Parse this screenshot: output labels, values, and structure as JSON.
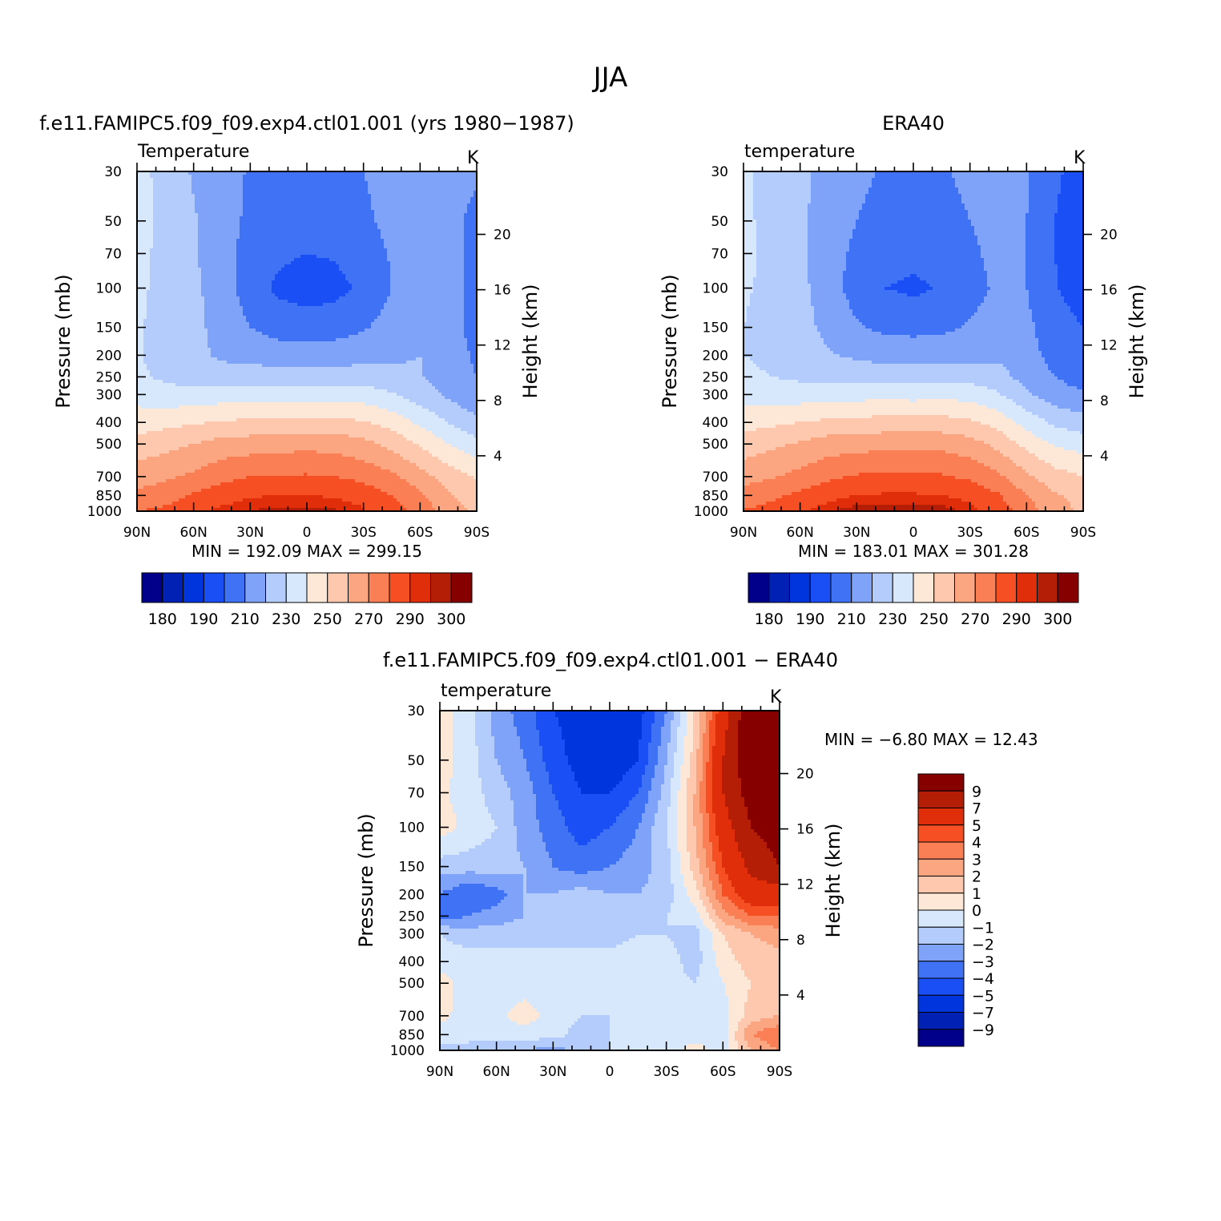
{
  "figure": {
    "title": "JJA"
  },
  "chart_data": [
    {
      "type": "heatmap",
      "title": "f.e11.FAMIPC5.f09_f09.exp4.ctl01.001 (yrs 1980-1987)",
      "subtitle": "Temperature",
      "units": "K",
      "ylabel": "Pressure (mb)",
      "ylabel_right": "Height (km)",
      "x_ticks": [
        "90N",
        "60N",
        "30N",
        "0",
        "30S",
        "60S",
        "90S"
      ],
      "y_ticks": [
        "30",
        "50",
        "70",
        "100",
        "150",
        "200",
        "250",
        "300",
        "400",
        "500",
        "700",
        "850",
        "1000"
      ],
      "height_ticks": [
        "4",
        "8",
        "12",
        "16",
        "20"
      ],
      "stats": {
        "min_label": "MIN =",
        "min": "192.09",
        "max_label": "MAX =",
        "max": "299.15"
      },
      "colorbar": {
        "orientation": "horizontal",
        "labels": [
          "180",
          "190",
          "210",
          "230",
          "250",
          "270",
          "290",
          "300"
        ],
        "colors": [
          "#00008a",
          "#0021b4",
          "#0034dc",
          "#1a4ff5",
          "#3f72f5",
          "#7ea3f8",
          "#b3ccfb",
          "#d8e8fc",
          "#fde8d8",
          "#fdc8ae",
          "#fca581",
          "#fb7f55",
          "#f64f24",
          "#e02e0b",
          "#b41e06",
          "#870000"
        ]
      },
      "grid": {
        "lats": [
          90,
          75,
          60,
          45,
          30,
          15,
          0,
          -15,
          -30,
          -45,
          -60,
          -75,
          -90
        ],
        "levels": [
          30,
          50,
          70,
          100,
          150,
          200,
          250,
          300,
          400,
          500,
          700,
          850,
          1000
        ],
        "values": [
          [
            234,
            226,
            219,
            214,
            209,
            207,
            207,
            208,
            210,
            214,
            216,
            213,
            211
          ],
          [
            234,
            227,
            221,
            214,
            208,
            205,
            204,
            205,
            208,
            213,
            216,
            212,
            208
          ],
          [
            233,
            227,
            221,
            214,
            206,
            202,
            200,
            201,
            205,
            211,
            216,
            212,
            208
          ],
          [
            232,
            227,
            222,
            215,
            205,
            198,
            195,
            197,
            202,
            210,
            216,
            212,
            208
          ],
          [
            231,
            227,
            223,
            216,
            210,
            206,
            205,
            206,
            209,
            214,
            218,
            212,
            208
          ],
          [
            231,
            226,
            223,
            218,
            216,
            215,
            214,
            215,
            216,
            218,
            220,
            213,
            209
          ],
          [
            232,
            228,
            226,
            225,
            225,
            225,
            225,
            225,
            225,
            223,
            221,
            214,
            210
          ],
          [
            236,
            234,
            233,
            235,
            235,
            236,
            235,
            236,
            235,
            231,
            225,
            218,
            212
          ],
          [
            245,
            247,
            249,
            251,
            252,
            253,
            253,
            253,
            251,
            246,
            238,
            230,
            222
          ],
          [
            254,
            257,
            260,
            264,
            265,
            266,
            267,
            266,
            263,
            257,
            249,
            240,
            233
          ],
          [
            265,
            268,
            272,
            277,
            280,
            281,
            281,
            280,
            277,
            272,
            264,
            255,
            249
          ],
          [
            273,
            276,
            281,
            286,
            289,
            290,
            290,
            289,
            286,
            280,
            272,
            261,
            255
          ],
          [
            280,
            282,
            288,
            292,
            295,
            297,
            297,
            296,
            291,
            284,
            277,
            265,
            258
          ]
        ]
      }
    },
    {
      "type": "heatmap",
      "title": "ERA40",
      "subtitle": "temperature",
      "units": "K",
      "ylabel": "Pressure (mb)",
      "ylabel_right": "Height (km)",
      "x_ticks": [
        "90N",
        "60N",
        "30N",
        "0",
        "30S",
        "60S",
        "90S"
      ],
      "y_ticks": [
        "30",
        "50",
        "70",
        "100",
        "150",
        "200",
        "250",
        "300",
        "400",
        "500",
        "700",
        "850",
        "1000"
      ],
      "height_ticks": [
        "4",
        "8",
        "12",
        "16",
        "20"
      ],
      "stats": {
        "min_label": "MIN =",
        "min": "183.01",
        "max_label": "MAX =",
        "max": "301.28"
      },
      "colorbar": {
        "orientation": "horizontal",
        "labels": [
          "180",
          "190",
          "210",
          "230",
          "250",
          "270",
          "290",
          "300"
        ],
        "colors": [
          "#00008a",
          "#0021b4",
          "#0034dc",
          "#1a4ff5",
          "#3f72f5",
          "#7ea3f8",
          "#b3ccfb",
          "#d8e8fc",
          "#fde8d8",
          "#fdc8ae",
          "#fca581",
          "#fb7f55",
          "#f64f24",
          "#e02e0b",
          "#b41e06",
          "#870000"
        ]
      },
      "grid": {
        "lats": [
          90,
          75,
          60,
          45,
          30,
          15,
          0,
          -15,
          -30,
          -45,
          -60,
          -75,
          -90
        ],
        "levels": [
          30,
          50,
          70,
          100,
          150,
          200,
          250,
          300,
          400,
          500,
          700,
          850,
          1000
        ],
        "values": [
          [
            232,
            226,
            222,
            217,
            212,
            209,
            208,
            209,
            212,
            216,
            211,
            202,
            195
          ],
          [
            232,
            227,
            222,
            215,
            210,
            207,
            206,
            207,
            210,
            214,
            210,
            200,
            193
          ],
          [
            232,
            228,
            222,
            214,
            208,
            205,
            203,
            205,
            208,
            213,
            210,
            200,
            192
          ],
          [
            231,
            228,
            223,
            214,
            206,
            200,
            198,
            201,
            206,
            212,
            210,
            201,
            194
          ],
          [
            230,
            227,
            224,
            217,
            211,
            208,
            207,
            208,
            211,
            215,
            212,
            205,
            200
          ],
          [
            230,
            228,
            225,
            221,
            218,
            216,
            216,
            216,
            217,
            218,
            213,
            207,
            203
          ],
          [
            232,
            230,
            228,
            227,
            227,
            226,
            226,
            226,
            226,
            224,
            216,
            210,
            206
          ],
          [
            237,
            236,
            235,
            236,
            236,
            237,
            236,
            237,
            236,
            231,
            222,
            214,
            211
          ],
          [
            246,
            248,
            250,
            252,
            253,
            254,
            254,
            254,
            252,
            246,
            236,
            228,
            224
          ],
          [
            255,
            258,
            261,
            265,
            266,
            267,
            268,
            267,
            264,
            257,
            247,
            239,
            236
          ],
          [
            266,
            269,
            273,
            278,
            281,
            282,
            282,
            281,
            278,
            272,
            262,
            254,
            250
          ],
          [
            274,
            278,
            282,
            287,
            290,
            291,
            291,
            290,
            287,
            281,
            270,
            261,
            257
          ],
          [
            281,
            283,
            289,
            294,
            298,
            299,
            299,
            298,
            293,
            285,
            275,
            264,
            258
          ]
        ]
      }
    },
    {
      "type": "heatmap",
      "title": "f.e11.FAMIPC5.f09_f09.exp4.ctl01.001 - ERA40",
      "subtitle": "temperature",
      "units": "K",
      "ylabel": "Pressure (mb)",
      "ylabel_right": "Height (km)",
      "x_ticks": [
        "90N",
        "60N",
        "30N",
        "0",
        "30S",
        "60S",
        "90S"
      ],
      "y_ticks": [
        "30",
        "50",
        "70",
        "100",
        "150",
        "200",
        "250",
        "300",
        "400",
        "500",
        "700",
        "850",
        "1000"
      ],
      "height_ticks": [
        "4",
        "8",
        "12",
        "16",
        "20"
      ],
      "stats": {
        "min_label": "MIN =",
        "min": "-6.80",
        "max_label": "MAX =",
        "max": "12.43"
      },
      "colorbar": {
        "orientation": "vertical",
        "labels": [
          "9",
          "7",
          "5",
          "4",
          "3",
          "2",
          "1",
          "0",
          "-1",
          "-2",
          "-3",
          "-4",
          "-5",
          "-7",
          "-9"
        ],
        "colors": [
          "#870000",
          "#b41e06",
          "#e02e0b",
          "#f64f24",
          "#fb7f55",
          "#fca581",
          "#fdc8ae",
          "#fde8d8",
          "#d8e8fc",
          "#b3ccfb",
          "#7ea3f8",
          "#3f72f5",
          "#1a4ff5",
          "#0034dc",
          "#0021b4",
          "#00008a"
        ]
      },
      "grid": {
        "lats": [
          90,
          75,
          60,
          45,
          30,
          15,
          0,
          -15,
          -30,
          -45,
          -60,
          -75,
          -90
        ],
        "levels": [
          30,
          50,
          70,
          100,
          150,
          200,
          250,
          300,
          400,
          500,
          700,
          850,
          1000
        ],
        "values": [
          [
            0.5,
            -0.5,
            -2.5,
            -3.5,
            -5.0,
            -5.5,
            -6.0,
            -5.5,
            -3.0,
            1.0,
            6.0,
            11.0,
            12.0
          ],
          [
            0.5,
            -0.5,
            -2.0,
            -3.0,
            -4.5,
            -5.5,
            -6.0,
            -5.0,
            -2.0,
            1.5,
            7.0,
            11.0,
            12.0
          ],
          [
            0.2,
            -0.5,
            -1.5,
            -2.5,
            -4.0,
            -5.0,
            -5.0,
            -4.0,
            -1.5,
            2.0,
            7.0,
            10.0,
            11.0
          ],
          [
            0.5,
            -0.3,
            -1.0,
            -2.5,
            -3.5,
            -4.5,
            -4.0,
            -3.0,
            -1.0,
            2.0,
            6.0,
            9.0,
            10.0
          ],
          [
            -1.5,
            -1.5,
            -1.5,
            -2.0,
            -3.0,
            -3.5,
            -3.0,
            -2.5,
            -1.5,
            1.5,
            5.0,
            7.5,
            9.0
          ],
          [
            -3.0,
            -4.0,
            -3.5,
            -2.0,
            -2.0,
            -1.5,
            -2.0,
            -2.0,
            -1.5,
            0.5,
            4.0,
            6.0,
            6.0
          ],
          [
            -3.5,
            -3.0,
            -2.5,
            -2.0,
            -1.5,
            -1.5,
            -1.5,
            -1.5,
            -1.0,
            -0.5,
            2.5,
            4.0,
            4.0
          ],
          [
            -1.0,
            -1.5,
            -1.5,
            -1.5,
            -1.5,
            -1.5,
            -1.5,
            -1.0,
            -1.0,
            -1.5,
            1.0,
            2.0,
            2.5
          ],
          [
            -0.5,
            -0.5,
            -0.5,
            -0.5,
            -0.5,
            -0.5,
            -0.5,
            -0.5,
            -0.5,
            -1.5,
            0.5,
            1.5,
            1.5
          ],
          [
            0.5,
            -0.5,
            -0.5,
            -0.5,
            -0.5,
            -0.5,
            -0.5,
            -0.5,
            -0.5,
            -1.0,
            0.0,
            1.0,
            1.0
          ],
          [
            0.3,
            -0.5,
            -0.3,
            0.5,
            -0.5,
            -1.0,
            -1.0,
            -1.0,
            -1.0,
            -1.0,
            -0.5,
            1.5,
            2.0
          ],
          [
            -0.5,
            -0.5,
            -0.3,
            -0.5,
            -0.5,
            -1.5,
            -1.0,
            -1.0,
            -0.5,
            -0.5,
            -0.5,
            3.0,
            4.0
          ],
          [
            -1.5,
            -1.5,
            -2.0,
            -2.0,
            -2.5,
            -1.5,
            -1.0,
            -0.5,
            -0.5,
            0.5,
            -0.5,
            2.0,
            3.0
          ]
        ]
      }
    }
  ]
}
